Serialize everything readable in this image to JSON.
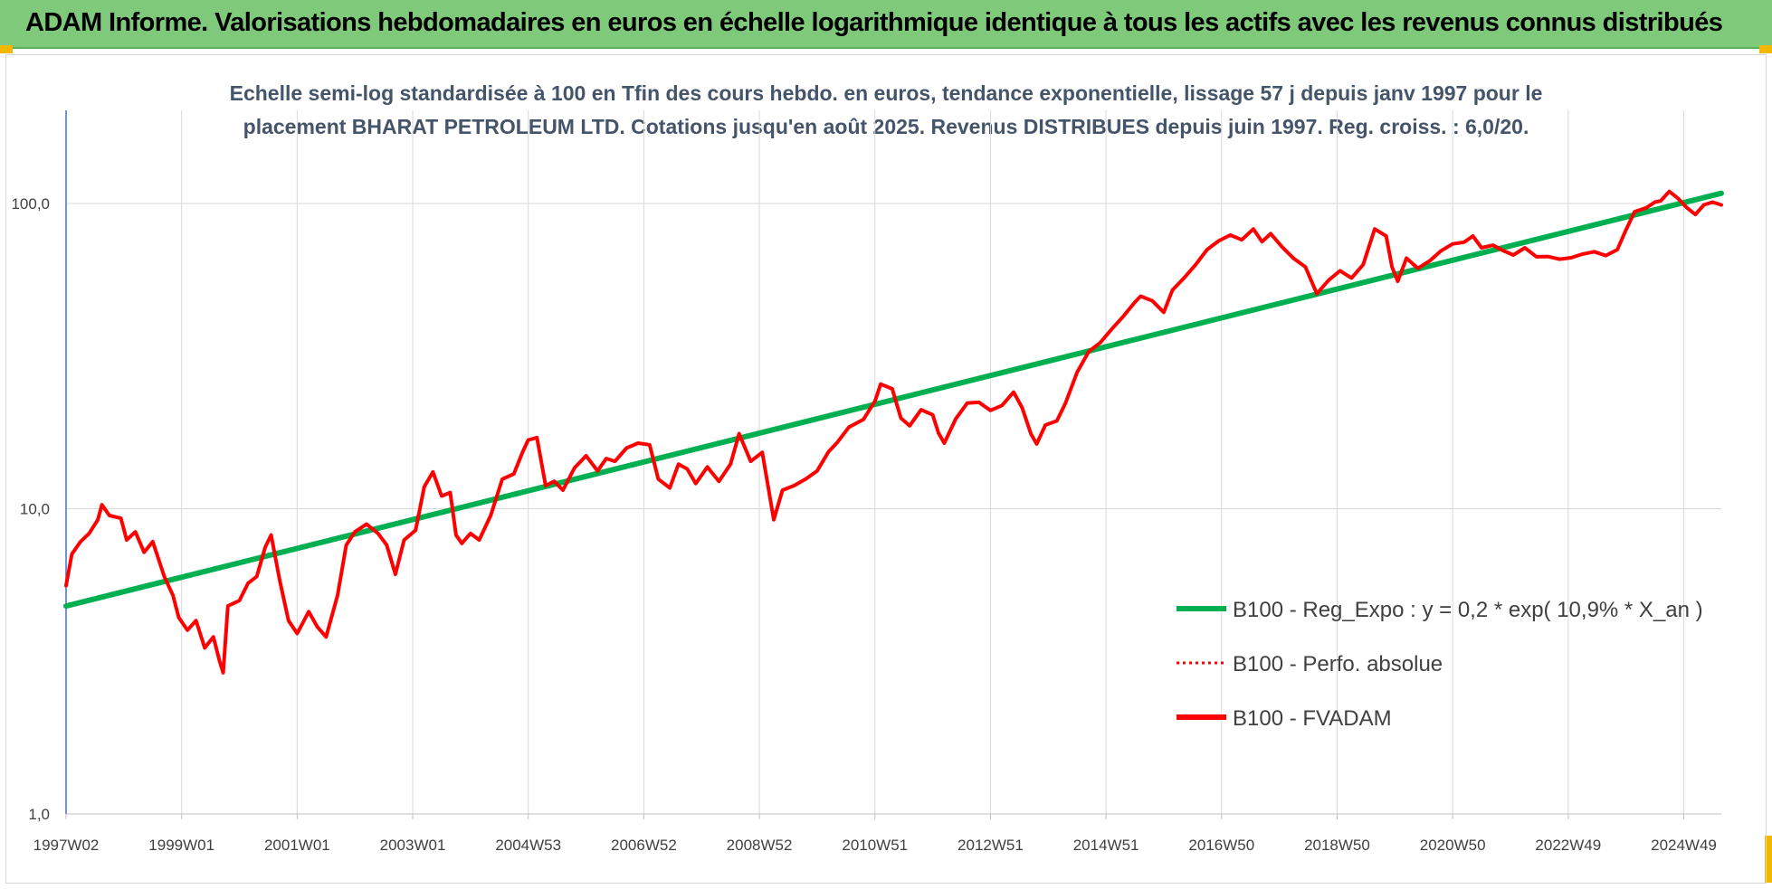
{
  "header": {
    "title": "ADAM Informe. Valorisations hebdomadaires en euros en échelle logarithmique identique à tous les actifs avec les revenus connus distribués"
  },
  "colors": {
    "banner": "#7fc97a",
    "accent": "#f2b800",
    "trend": "#00b050",
    "series": "#ff0000"
  },
  "chart_data": {
    "type": "line",
    "subtitle_lines": [
      "Echelle semi-log standardisée à 100 en Tfin des cours hebdo. en euros, tendance exponentielle, lissage 57 j depuis janv 1997 pour le",
      "placement BHARAT PETROLEUM LTD. Cotations jusqu'en août 2025. Revenus DISTRIBUES depuis juin 1997. Reg. croiss. : 6,0/20."
    ],
    "y_scale": "log",
    "ylim": [
      1,
      100
    ],
    "y_ticks": [
      {
        "value": 100,
        "label": "100,0"
      },
      {
        "value": 10,
        "label": "10,0"
      },
      {
        "value": 1,
        "label": "1,0"
      }
    ],
    "xlim": [
      1997.0,
      2025.65
    ],
    "x_ticks": [
      {
        "value": 1997.0,
        "label": "1997W02"
      },
      {
        "value": 1999.0,
        "label": "1999W01"
      },
      {
        "value": 2001.0,
        "label": "2001W01"
      },
      {
        "value": 2003.0,
        "label": "2003W01"
      },
      {
        "value": 2005.0,
        "label": "2004W53"
      },
      {
        "value": 2007.0,
        "label": "2006W52"
      },
      {
        "value": 2009.0,
        "label": "2008W52"
      },
      {
        "value": 2011.0,
        "label": "2010W51"
      },
      {
        "value": 2013.0,
        "label": "2012W51"
      },
      {
        "value": 2015.0,
        "label": "2014W51"
      },
      {
        "value": 2017.0,
        "label": "2016W50"
      },
      {
        "value": 2019.0,
        "label": "2018W50"
      },
      {
        "value": 2021.0,
        "label": "2020W50"
      },
      {
        "value": 2023.0,
        "label": "2022W49"
      },
      {
        "value": 2025.0,
        "label": "2024W49"
      }
    ],
    "grid": true,
    "legend_position": "bottom-right",
    "series": [
      {
        "name": "B100 - Reg_Expo : y = 0,2 * exp( 10,9% *  X_an )",
        "style": "solid",
        "color": "#00b050",
        "points": [
          [
            1997.0,
            4.8
          ],
          [
            2025.65,
            108
          ]
        ]
      },
      {
        "name": "B100 - Perfo. absolue",
        "style": "dotted",
        "color": "#ff0000",
        "points": []
      },
      {
        "name": "B100 - FVADAM",
        "style": "solid",
        "color": "#ff0000",
        "points": [
          [
            1997.0,
            5.6
          ],
          [
            1997.1,
            7.1
          ],
          [
            1997.25,
            7.8
          ],
          [
            1997.4,
            8.3
          ],
          [
            1997.55,
            9.2
          ],
          [
            1997.62,
            10.3
          ],
          [
            1997.75,
            9.5
          ],
          [
            1997.95,
            9.3
          ],
          [
            1998.05,
            7.9
          ],
          [
            1998.2,
            8.4
          ],
          [
            1998.35,
            7.2
          ],
          [
            1998.5,
            7.8
          ],
          [
            1998.7,
            6.0
          ],
          [
            1998.85,
            5.2
          ],
          [
            1998.95,
            4.4
          ],
          [
            1999.1,
            4.0
          ],
          [
            1999.25,
            4.3
          ],
          [
            1999.4,
            3.5
          ],
          [
            1999.55,
            3.8
          ],
          [
            1999.65,
            3.2
          ],
          [
            1999.72,
            2.9
          ],
          [
            1999.8,
            4.8
          ],
          [
            2000.0,
            5.0
          ],
          [
            2000.15,
            5.7
          ],
          [
            2000.3,
            6.0
          ],
          [
            2000.45,
            7.5
          ],
          [
            2000.55,
            8.2
          ],
          [
            2000.7,
            5.8
          ],
          [
            2000.85,
            4.3
          ],
          [
            2001.0,
            3.9
          ],
          [
            2001.2,
            4.6
          ],
          [
            2001.35,
            4.1
          ],
          [
            2001.5,
            3.8
          ],
          [
            2001.7,
            5.2
          ],
          [
            2001.85,
            7.6
          ],
          [
            2002.0,
            8.4
          ],
          [
            2002.2,
            8.9
          ],
          [
            2002.4,
            8.3
          ],
          [
            2002.55,
            7.6
          ],
          [
            2002.7,
            6.1
          ],
          [
            2002.85,
            7.9
          ],
          [
            2003.05,
            8.5
          ],
          [
            2003.2,
            11.8
          ],
          [
            2003.35,
            13.2
          ],
          [
            2003.5,
            11.0
          ],
          [
            2003.65,
            11.3
          ],
          [
            2003.75,
            8.2
          ],
          [
            2003.85,
            7.7
          ],
          [
            2004.0,
            8.3
          ],
          [
            2004.15,
            7.9
          ],
          [
            2004.35,
            9.5
          ],
          [
            2004.55,
            12.5
          ],
          [
            2004.75,
            13.0
          ],
          [
            2004.9,
            15.3
          ],
          [
            2005.0,
            16.8
          ],
          [
            2005.15,
            17.1
          ],
          [
            2005.3,
            11.9
          ],
          [
            2005.45,
            12.3
          ],
          [
            2005.6,
            11.5
          ],
          [
            2005.8,
            13.6
          ],
          [
            2006.0,
            14.9
          ],
          [
            2006.2,
            13.3
          ],
          [
            2006.35,
            14.6
          ],
          [
            2006.5,
            14.3
          ],
          [
            2006.7,
            15.8
          ],
          [
            2006.9,
            16.4
          ],
          [
            2007.1,
            16.2
          ],
          [
            2007.25,
            12.5
          ],
          [
            2007.45,
            11.7
          ],
          [
            2007.6,
            14.0
          ],
          [
            2007.75,
            13.5
          ],
          [
            2007.9,
            12.1
          ],
          [
            2008.1,
            13.7
          ],
          [
            2008.3,
            12.3
          ],
          [
            2008.5,
            14.0
          ],
          [
            2008.65,
            17.6
          ],
          [
            2008.85,
            14.3
          ],
          [
            2009.05,
            15.3
          ],
          [
            2009.25,
            9.2
          ],
          [
            2009.4,
            11.5
          ],
          [
            2009.6,
            11.9
          ],
          [
            2009.8,
            12.5
          ],
          [
            2010.0,
            13.3
          ],
          [
            2010.2,
            15.4
          ],
          [
            2010.35,
            16.5
          ],
          [
            2010.55,
            18.5
          ],
          [
            2010.8,
            19.6
          ],
          [
            2011.0,
            22.5
          ],
          [
            2011.1,
            25.6
          ],
          [
            2011.3,
            24.7
          ],
          [
            2011.45,
            19.8
          ],
          [
            2011.6,
            18.7
          ],
          [
            2011.8,
            21.1
          ],
          [
            2012.0,
            20.3
          ],
          [
            2012.1,
            17.7
          ],
          [
            2012.2,
            16.4
          ],
          [
            2012.4,
            19.7
          ],
          [
            2012.6,
            22.2
          ],
          [
            2012.8,
            22.3
          ],
          [
            2013.0,
            21.0
          ],
          [
            2013.2,
            21.8
          ],
          [
            2013.4,
            24.1
          ],
          [
            2013.55,
            21.4
          ],
          [
            2013.7,
            17.6
          ],
          [
            2013.8,
            16.3
          ],
          [
            2013.95,
            18.8
          ],
          [
            2014.15,
            19.4
          ],
          [
            2014.3,
            22.2
          ],
          [
            2014.5,
            28.0
          ],
          [
            2014.7,
            32.7
          ],
          [
            2014.9,
            35.0
          ],
          [
            2015.1,
            38.8
          ],
          [
            2015.3,
            42.7
          ],
          [
            2015.5,
            47.5
          ],
          [
            2015.6,
            49.7
          ],
          [
            2015.8,
            48.0
          ],
          [
            2016.0,
            44.0
          ],
          [
            2016.15,
            52.0
          ],
          [
            2016.35,
            57.0
          ],
          [
            2016.55,
            63.0
          ],
          [
            2016.75,
            70.6
          ],
          [
            2016.95,
            75.4
          ],
          [
            2017.15,
            78.8
          ],
          [
            2017.35,
            76.0
          ],
          [
            2017.55,
            82.5
          ],
          [
            2017.7,
            75.0
          ],
          [
            2017.85,
            79.6
          ],
          [
            2018.05,
            72.0
          ],
          [
            2018.25,
            66.0
          ],
          [
            2018.45,
            62.0
          ],
          [
            2018.65,
            50.6
          ],
          [
            2018.85,
            56.0
          ],
          [
            2019.05,
            60.2
          ],
          [
            2019.25,
            57.0
          ],
          [
            2019.45,
            63.0
          ],
          [
            2019.65,
            82.5
          ],
          [
            2019.85,
            78.2
          ],
          [
            2019.95,
            62.0
          ],
          [
            2020.05,
            55.6
          ],
          [
            2020.2,
            66.2
          ],
          [
            2020.4,
            61.3
          ],
          [
            2020.6,
            64.8
          ],
          [
            2020.8,
            70.0
          ],
          [
            2021.0,
            73.7
          ],
          [
            2021.2,
            74.7
          ],
          [
            2021.35,
            78.2
          ],
          [
            2021.5,
            71.6
          ],
          [
            2021.7,
            73.0
          ],
          [
            2021.85,
            70.4
          ],
          [
            2022.05,
            67.8
          ],
          [
            2022.25,
            71.6
          ],
          [
            2022.45,
            66.9
          ],
          [
            2022.65,
            67.0
          ],
          [
            2022.85,
            65.7
          ],
          [
            2023.05,
            66.4
          ],
          [
            2023.25,
            68.3
          ],
          [
            2023.45,
            69.5
          ],
          [
            2023.65,
            67.5
          ],
          [
            2023.85,
            70.6
          ],
          [
            2024.0,
            82.0
          ],
          [
            2024.15,
            94.0
          ],
          [
            2024.35,
            96.8
          ],
          [
            2024.5,
            101.0
          ],
          [
            2024.6,
            102.0
          ],
          [
            2024.75,
            109.5
          ],
          [
            2024.9,
            104.0
          ],
          [
            2025.05,
            97.0
          ],
          [
            2025.2,
            92.0
          ],
          [
            2025.35,
            99.0
          ],
          [
            2025.5,
            101.0
          ],
          [
            2025.65,
            98.9
          ]
        ]
      }
    ]
  }
}
